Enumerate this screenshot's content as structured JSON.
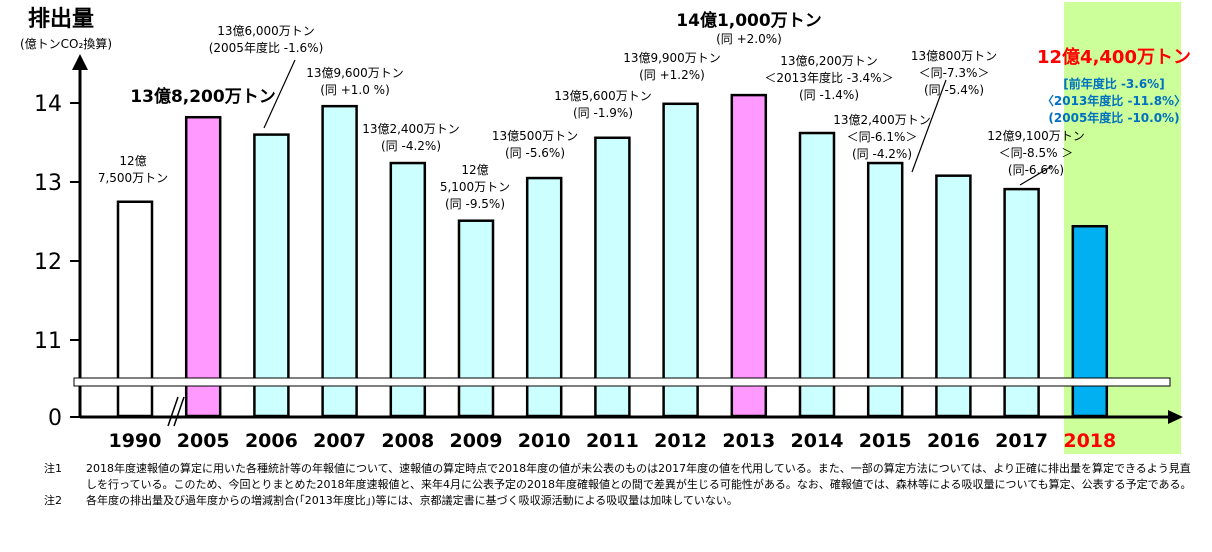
{
  "chart_data": {
    "type": "bar",
    "title": "排出量",
    "ylabel_unit": "(億トンCO₂換算)",
    "yticks": [
      "0",
      "11",
      "12",
      "13",
      "14"
    ],
    "ylim": [
      11,
      14.4
    ],
    "axis_break": true,
    "categories": [
      "1990",
      "2005",
      "2006",
      "2007",
      "2008",
      "2009",
      "2010",
      "2011",
      "2012",
      "2013",
      "2014",
      "2015",
      "2016",
      "2017",
      "2018"
    ],
    "values": [
      12.75,
      13.82,
      13.6,
      13.96,
      13.24,
      12.51,
      13.05,
      13.56,
      13.99,
      14.1,
      13.62,
      13.24,
      13.08,
      12.91,
      12.44
    ],
    "bar_colors": [
      "#ffffff",
      "#ff99ff",
      "#ccffff",
      "#ccffff",
      "#ccffff",
      "#ccffff",
      "#ccffff",
      "#ccffff",
      "#ccffff",
      "#ff99ff",
      "#ccffff",
      "#ccffff",
      "#ccffff",
      "#ccffff",
      "#00b0f0"
    ],
    "highlight_background": "#ccff99",
    "highlight_label_color": "#ff0000",
    "labels": [
      {
        "lines": [
          "12億",
          "7,500万トン"
        ]
      },
      {
        "lines": [
          "13億8,200万トン"
        ],
        "bold": true
      },
      {
        "lines": [
          "13億6,000万トン",
          "(2005年度比 -1.6%)"
        ]
      },
      {
        "lines": [
          "13億9,600万トン",
          "(同 +1.0 %)"
        ]
      },
      {
        "lines": [
          "13億2,400万トン",
          "(同 -4.2%)"
        ]
      },
      {
        "lines": [
          "12億",
          "5,100万トン",
          "(同 -9.5%)"
        ]
      },
      {
        "lines": [
          "13億500万トン",
          "(同 -5.6%)"
        ]
      },
      {
        "lines": [
          "13億5,600万トン",
          "(同 -1.9%)"
        ]
      },
      {
        "lines": [
          "13億9,900万トン",
          "(同 +1.2%)"
        ]
      },
      {
        "lines": [
          "14億1,000万トン",
          "(同 +2.0%)"
        ],
        "bold": true
      },
      {
        "lines": [
          "13億6,200万トン",
          "＜2013年度比 -3.4%＞",
          "(同 -1.4%)"
        ]
      },
      {
        "lines": [
          "13億2,400万トン",
          "＜同-6.1%＞",
          "(同 -4.2%)"
        ]
      },
      {
        "lines": [
          "13億800万トン",
          "＜同-7.3%＞",
          "(同 -5.4%)"
        ]
      },
      {
        "lines": [
          "12億9,100万トン",
          "＜同-8.5% ＞",
          "(同-6.6%)"
        ]
      },
      {
        "lines": [
          "12億4,400万トン",
          "[前年度比 -3.6%]",
          "〈2013年度比 -11.8%〉",
          "(2005年度比 -10.0%)"
        ],
        "colors": [
          "#ff0000",
          "#0070c0",
          "#0070c0",
          "#0070c0"
        ],
        "bold": true
      }
    ]
  },
  "notes": [
    {
      "key": "注1",
      "text": "2018年度速報値の算定に用いた各種統計等の年報値について、速報値の算定時点で2018年度の値が未公表のものは2017年度の値を代用している。また、一部の算定方法については、より正確に排出量を算定できるよう見直しを行っている。このため、今回とりまとめた2018年度速報値と、来年4月に公表予定の2018年度確報値との間で差異が生じる可能性がある。なお、確報値では、森林等による吸収量についても算定、公表する予定である。"
    },
    {
      "key": "注2",
      "text": "各年度の排出量及び過年度からの増減割合(「2013年度比」)等には、京都議定書に基づく吸収源活動による吸収量は加味していない。"
    }
  ]
}
